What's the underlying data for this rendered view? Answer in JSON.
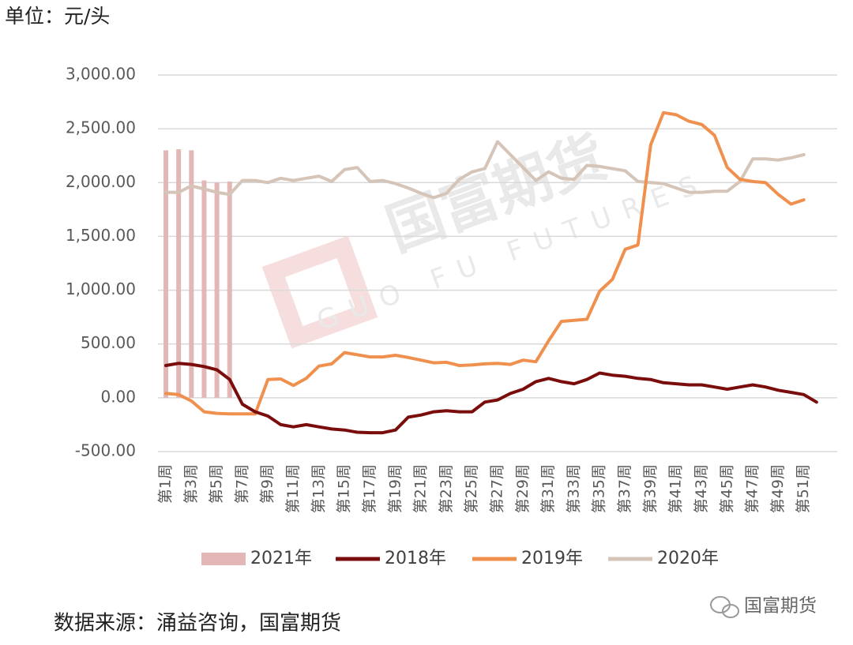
{
  "chart_data": {
    "type": "line",
    "unit_label": "单位：元/头",
    "source": "数据来源：涌益咨询，国富期货",
    "watermark": "国富期货",
    "watermark_sub": "GUO FU FUTURES",
    "brand": "国富期货",
    "categories": [
      "第1周",
      null,
      "第3周",
      null,
      "第5周",
      null,
      "第7周",
      null,
      "第9周",
      null,
      "第11周",
      null,
      "第13周",
      null,
      "第15周",
      null,
      "第17周",
      null,
      "第19周",
      null,
      "第21周",
      null,
      "第23周",
      null,
      "第25周",
      null,
      "第27周",
      null,
      "第29周",
      null,
      "第31周",
      null,
      "第33周",
      null,
      "第35周",
      null,
      "第37周",
      null,
      "第39周",
      null,
      "第41周",
      null,
      "第43周",
      null,
      "第45周",
      null,
      "第47周",
      null,
      "第49周",
      null,
      "第51周",
      null,
      null
    ],
    "ylim": [
      -500,
      3000
    ],
    "yticks": [
      {
        "value": -500,
        "label": "-500.00"
      },
      {
        "value": 0,
        "label": "0.00"
      },
      {
        "value": 500,
        "label": "500.00"
      },
      {
        "value": 1000,
        "label": "1,000.00"
      },
      {
        "value": 1500,
        "label": "1,500.00"
      },
      {
        "value": 2000,
        "label": "2,000.00"
      },
      {
        "value": 2500,
        "label": "2,500.00"
      },
      {
        "value": 3000,
        "label": "3,000.00"
      }
    ],
    "grid": true,
    "legend": "bottom",
    "series": [
      {
        "name": "2021年",
        "type": "bar",
        "color": "#e3b7b5",
        "values": [
          2300,
          2310,
          2300,
          2020,
          2000,
          2010,
          null,
          null,
          null,
          null,
          null,
          null,
          null,
          null,
          null,
          null,
          null,
          null,
          null,
          null,
          null,
          null,
          null,
          null,
          null,
          null,
          null,
          null,
          null,
          null,
          null,
          null,
          null,
          null,
          null,
          null,
          null,
          null,
          null,
          null,
          null,
          null,
          null,
          null,
          null,
          null,
          null,
          null,
          null,
          null,
          null,
          null,
          null
        ]
      },
      {
        "name": "2018年",
        "type": "line",
        "color": "#7b0c0c",
        "values": [
          300,
          320,
          310,
          290,
          260,
          170,
          -60,
          -130,
          -170,
          -250,
          -270,
          -250,
          -270,
          -290,
          -300,
          -320,
          -325,
          -325,
          -300,
          -180,
          -160,
          -130,
          -120,
          -130,
          -130,
          -40,
          -20,
          40,
          80,
          150,
          180,
          150,
          130,
          170,
          230,
          210,
          200,
          180,
          170,
          140,
          130,
          120,
          120,
          100,
          80,
          100,
          120,
          100,
          70,
          50,
          30,
          -40,
          null
        ]
      },
      {
        "name": "2019年",
        "type": "line",
        "color": "#f0904f",
        "values": [
          40,
          30,
          -30,
          -130,
          -145,
          -150,
          -150,
          -150,
          170,
          175,
          115,
          180,
          295,
          315,
          420,
          400,
          380,
          380,
          395,
          375,
          350,
          325,
          330,
          300,
          305,
          315,
          320,
          310,
          350,
          335,
          530,
          710,
          720,
          730,
          990,
          1100,
          1380,
          1420,
          2350,
          2650,
          2630,
          2570,
          2540,
          2440,
          2140,
          2030,
          2010,
          2000,
          1890,
          1800,
          1840,
          null,
          null
        ]
      },
      {
        "name": "2020年",
        "type": "line",
        "color": "#d5c4b8",
        "values": [
          1910,
          1910,
          1970,
          1940,
          1910,
          1890,
          2020,
          2020,
          2000,
          2040,
          2020,
          2040,
          2060,
          2010,
          2120,
          2140,
          2010,
          2020,
          1990,
          1950,
          1900,
          1860,
          1900,
          2030,
          2100,
          2130,
          2380,
          2260,
          2140,
          2020,
          2100,
          2040,
          2030,
          2160,
          2150,
          2130,
          2110,
          2010,
          2000,
          1990,
          1950,
          1910,
          1910,
          1920,
          1920,
          2010,
          2220,
          2220,
          2210,
          2230,
          2260,
          null,
          null
        ]
      }
    ]
  }
}
